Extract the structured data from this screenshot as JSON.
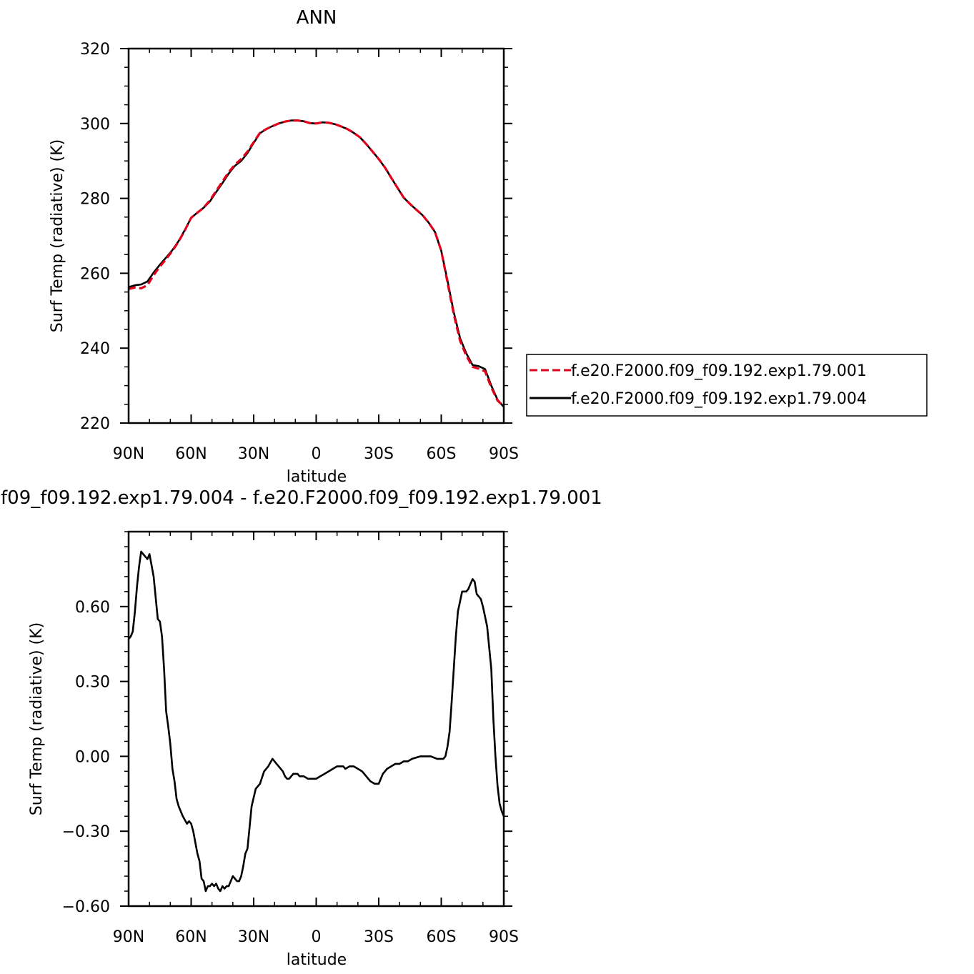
{
  "colors": {
    "series_001": "#e3001b",
    "series_004": "#000000",
    "diff": "#000000"
  },
  "chart_data": [
    {
      "type": "line",
      "title": "ANN",
      "xlabel": "latitude",
      "ylabel": "Surf Temp (radiative) (K)",
      "xlim": [
        90,
        -90
      ],
      "ylim": [
        220,
        320
      ],
      "xticks": [
        {
          "v": 90,
          "label": "90N"
        },
        {
          "v": 60,
          "label": "60N"
        },
        {
          "v": 30,
          "label": "30N"
        },
        {
          "v": 0,
          "label": "0"
        },
        {
          "v": -30,
          "label": "30S"
        },
        {
          "v": -60,
          "label": "60S"
        },
        {
          "v": -90,
          "label": "90S"
        }
      ],
      "yticks": [
        {
          "v": 220,
          "label": "220"
        },
        {
          "v": 240,
          "label": "240"
        },
        {
          "v": 260,
          "label": "260"
        },
        {
          "v": 280,
          "label": "280"
        },
        {
          "v": 300,
          "label": "300"
        },
        {
          "v": 320,
          "label": "320"
        }
      ],
      "legend": {
        "placement": "right"
      },
      "series": [
        {
          "name": "f.e20.F2000.f09_f09.192.exp1.79.001",
          "style": "dashed",
          "color": "#e3001b",
          "x": [
            90,
            87,
            84,
            81,
            78,
            75,
            72,
            69,
            66,
            63,
            60,
            57,
            54,
            51,
            48,
            45,
            42,
            39,
            36,
            33,
            30,
            27,
            24,
            21,
            18,
            15,
            12,
            9,
            6,
            3,
            0,
            -3,
            -6,
            -9,
            -12,
            -15,
            -18,
            -21,
            -24,
            -27,
            -30,
            -33,
            -36,
            -39,
            -42,
            -45,
            -48,
            -51,
            -54,
            -57,
            -60,
            -63,
            -66,
            -69,
            -72,
            -75,
            -78,
            -81,
            -84,
            -87,
            -90
          ],
          "y": [
            255.8,
            256.2,
            256.0,
            256.8,
            259.5,
            261.8,
            263.8,
            266.0,
            268.5,
            271.5,
            274.8,
            276.2,
            277.5,
            279.5,
            282.0,
            284.5,
            287.0,
            289.0,
            290.5,
            292.5,
            295.0,
            297.5,
            298.5,
            299.3,
            300.0,
            300.5,
            300.8,
            300.8,
            300.6,
            300.1,
            300.0,
            300.3,
            300.2,
            299.8,
            299.2,
            298.5,
            297.5,
            296.3,
            294.5,
            292.5,
            290.5,
            288.2,
            285.5,
            282.8,
            280.2,
            278.5,
            277.0,
            275.5,
            273.5,
            271.0,
            266.0,
            257.5,
            249.0,
            242.0,
            238.0,
            235.0,
            234.5,
            233.8,
            229.5,
            226.0,
            224.5
          ]
        },
        {
          "name": "f.e20.F2000.f09_f09.192.exp1.79.004",
          "style": "solid",
          "color": "#000000",
          "x": [
            90,
            87,
            84,
            81,
            78,
            75,
            72,
            69,
            66,
            63,
            60,
            57,
            54,
            51,
            48,
            45,
            42,
            39,
            36,
            33,
            30,
            27,
            24,
            21,
            18,
            15,
            12,
            9,
            6,
            3,
            0,
            -3,
            -6,
            -9,
            -12,
            -15,
            -18,
            -21,
            -24,
            -27,
            -30,
            -33,
            -36,
            -39,
            -42,
            -45,
            -48,
            -51,
            -54,
            -57,
            -60,
            -63,
            -66,
            -69,
            -72,
            -75,
            -78,
            -81,
            -84,
            -87,
            -90
          ],
          "y": [
            256.3,
            256.8,
            257.0,
            257.8,
            260.2,
            262.3,
            264.2,
            266.2,
            268.6,
            271.6,
            274.8,
            276.2,
            277.5,
            279.2,
            281.7,
            284.1,
            286.6,
            288.7,
            290.0,
            292.1,
            294.8,
            297.4,
            298.5,
            299.3,
            300.0,
            300.5,
            300.8,
            300.8,
            300.6,
            300.1,
            300.0,
            300.3,
            300.2,
            299.8,
            299.2,
            298.5,
            297.5,
            296.3,
            294.5,
            292.5,
            290.5,
            288.2,
            285.5,
            282.8,
            280.2,
            278.5,
            277.0,
            275.5,
            273.5,
            271.0,
            266.0,
            258.0,
            249.6,
            242.7,
            238.6,
            235.5,
            235.2,
            234.4,
            230.0,
            226.2,
            224.3
          ]
        }
      ]
    },
    {
      "type": "line",
      "title": "f09_f09.192.exp1.79.004 - f.e20.F2000.f09_f09.192.exp1.79.001",
      "xlabel": "latitude",
      "ylabel": "Surf Temp (radiative) (K)",
      "xlim": [
        90,
        -90
      ],
      "ylim": [
        -0.6,
        0.9
      ],
      "xticks": [
        {
          "v": 90,
          "label": "90N"
        },
        {
          "v": 60,
          "label": "60N"
        },
        {
          "v": 30,
          "label": "30N"
        },
        {
          "v": 0,
          "label": "0"
        },
        {
          "v": -30,
          "label": "30S"
        },
        {
          "v": -60,
          "label": "60S"
        },
        {
          "v": -90,
          "label": "90S"
        }
      ],
      "yticks": [
        {
          "v": -0.6,
          "label": "−0.60"
        },
        {
          "v": -0.3,
          "label": "−0.30"
        },
        {
          "v": 0.0,
          "label": "0.00"
        },
        {
          "v": 0.3,
          "label": "0.30"
        },
        {
          "v": 0.6,
          "label": "0.60"
        }
      ],
      "series": [
        {
          "style": "solid",
          "color": "#000000",
          "x": [
            90,
            89,
            88,
            87,
            86,
            85,
            84,
            83,
            82,
            81,
            80,
            78,
            76,
            75,
            74,
            73,
            72,
            71,
            70,
            69,
            68,
            67,
            66,
            64,
            62,
            61,
            60,
            59,
            57,
            56,
            55,
            54,
            53,
            52,
            51,
            50,
            49,
            48,
            47,
            46,
            45,
            44,
            43,
            42,
            41,
            40,
            39,
            38,
            37,
            36,
            35,
            34,
            33,
            31,
            29,
            27,
            25,
            23,
            21,
            19,
            17,
            16,
            15,
            14,
            13,
            11,
            9,
            8,
            6,
            4,
            2,
            0,
            -2,
            -4,
            -6,
            -8,
            -10,
            -12,
            -13,
            -14,
            -16,
            -18,
            -20,
            -22,
            -24,
            -26,
            -28,
            -30,
            -32,
            -34,
            -36,
            -38,
            -40,
            -42,
            -44,
            -46,
            -50,
            -55,
            -58,
            -60,
            -61,
            -62,
            -63,
            -64,
            -65,
            -66,
            -67,
            -68,
            -70,
            -72,
            -73,
            -74,
            -75,
            -76,
            -77,
            -78,
            -79,
            -80,
            -82,
            -84,
            -85,
            -86,
            -87,
            -88,
            -89,
            -90
          ],
          "y": [
            0.47,
            0.48,
            0.5,
            0.58,
            0.68,
            0.76,
            0.82,
            0.81,
            0.8,
            0.79,
            0.81,
            0.72,
            0.55,
            0.54,
            0.48,
            0.35,
            0.18,
            0.12,
            0.05,
            -0.05,
            -0.1,
            -0.17,
            -0.2,
            -0.24,
            -0.27,
            -0.26,
            -0.27,
            -0.3,
            -0.39,
            -0.42,
            -0.49,
            -0.5,
            -0.54,
            -0.52,
            -0.52,
            -0.51,
            -0.52,
            -0.51,
            -0.53,
            -0.54,
            -0.52,
            -0.53,
            -0.52,
            -0.52,
            -0.5,
            -0.48,
            -0.49,
            -0.5,
            -0.5,
            -0.48,
            -0.44,
            -0.39,
            -0.37,
            -0.2,
            -0.13,
            -0.11,
            -0.06,
            -0.04,
            -0.01,
            -0.03,
            -0.05,
            -0.06,
            -0.08,
            -0.09,
            -0.09,
            -0.07,
            -0.07,
            -0.08,
            -0.08,
            -0.09,
            -0.09,
            -0.09,
            -0.08,
            -0.07,
            -0.06,
            -0.05,
            -0.04,
            -0.04,
            -0.04,
            -0.05,
            -0.04,
            -0.04,
            -0.05,
            -0.06,
            -0.08,
            -0.1,
            -0.11,
            -0.11,
            -0.07,
            -0.05,
            -0.04,
            -0.03,
            -0.03,
            -0.02,
            -0.02,
            -0.01,
            0.0,
            0.0,
            -0.01,
            -0.01,
            -0.01,
            0.0,
            0.04,
            0.1,
            0.22,
            0.35,
            0.48,
            0.58,
            0.66,
            0.66,
            0.67,
            0.69,
            0.71,
            0.7,
            0.65,
            0.64,
            0.63,
            0.6,
            0.52,
            0.35,
            0.15,
            0.0,
            -0.12,
            -0.19,
            -0.22,
            -0.24
          ]
        }
      ]
    }
  ]
}
